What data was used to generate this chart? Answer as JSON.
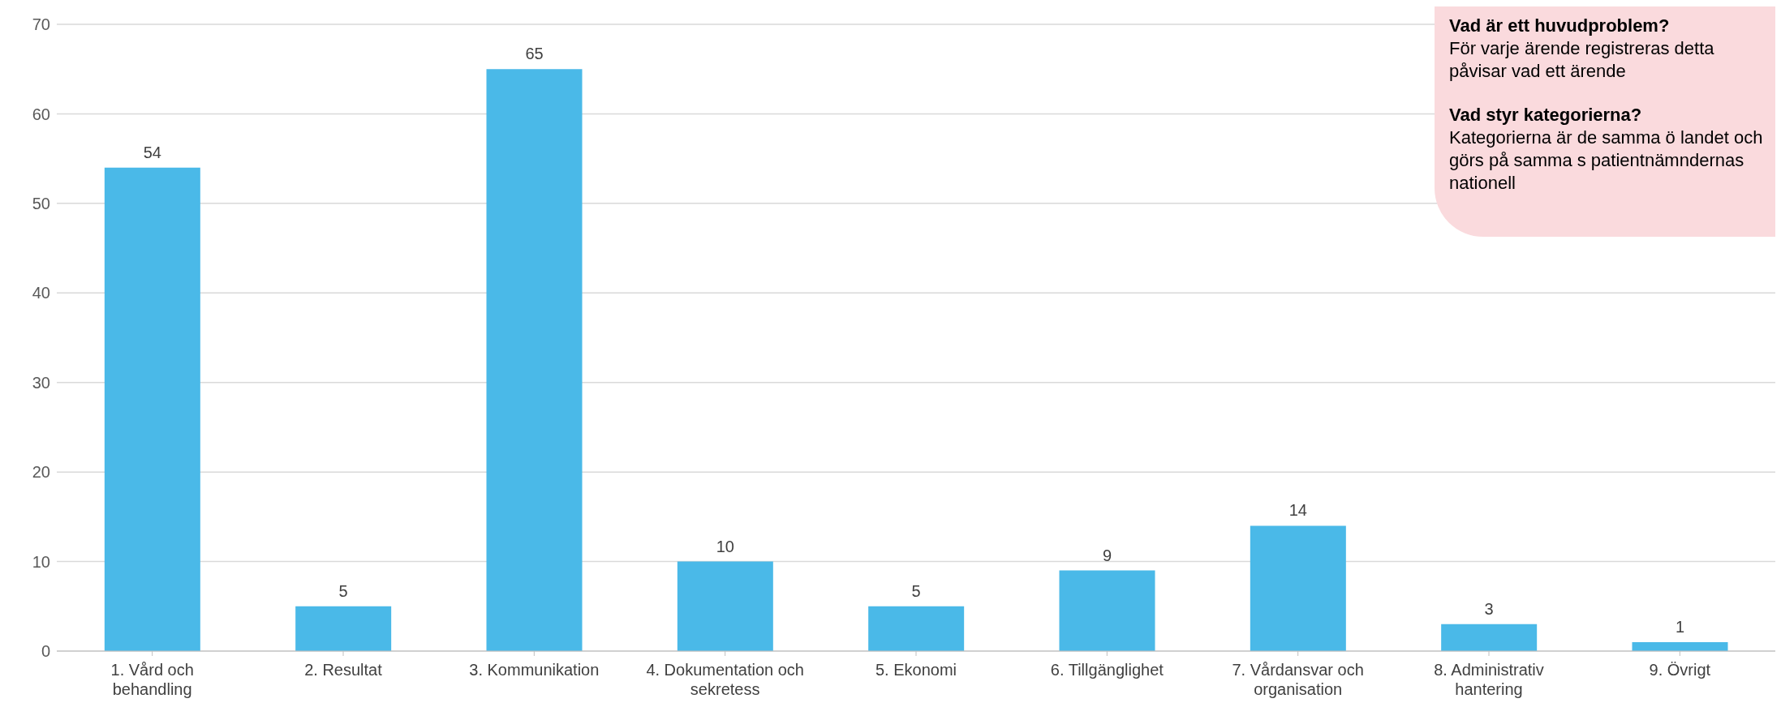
{
  "chart_data": {
    "type": "bar",
    "categories": [
      "1. Vård och behandling",
      "2. Resultat",
      "3. Kommunikation",
      "4. Dokumentation och sekretess",
      "5. Ekonomi",
      "6. Tillgänglighet",
      "7. Vårdansvar och organisation",
      "8. Administrativ hantering",
      "9. Övrigt"
    ],
    "values": [
      54,
      5,
      65,
      10,
      5,
      9,
      14,
      3,
      1
    ],
    "color": "#4ab9e8",
    "data_labels": true,
    "ylim": [
      0,
      70
    ],
    "yticks": [
      0,
      10,
      20,
      30,
      40,
      50,
      60,
      70
    ],
    "grid": "y",
    "annotations": [
      "Vad är ett huvudproblem?",
      "För varje ärende registreras detta påvisar vad ett ärende",
      "Vad styr kategorierna?",
      "Kategorierna är de samma ö landet och görs på samma s patientnämndernas nationell"
    ]
  }
}
